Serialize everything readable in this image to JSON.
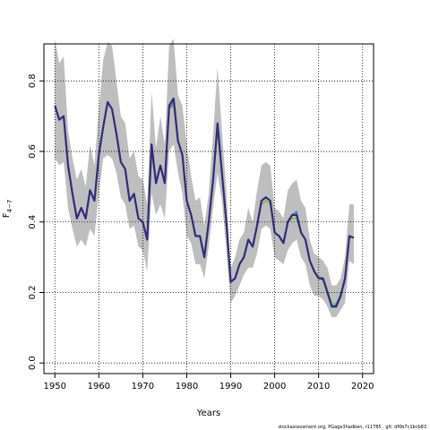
{
  "chart_data": {
    "type": "line",
    "xlabel": "Years",
    "ylabel_main": "F",
    "ylabel_sub": "4−7",
    "xlim": [
      1947.5,
      2022.5
    ],
    "ylim": [
      -0.03,
      0.905
    ],
    "xticks": [
      1950,
      1960,
      1970,
      1980,
      1990,
      2000,
      2010,
      2020
    ],
    "yticks": [
      0.0,
      0.2,
      0.4,
      0.6,
      0.8
    ],
    "ytick_labels": [
      "0.0",
      "0.2",
      "0.4",
      "0.6",
      "0.8"
    ],
    "grid": true,
    "band_color": "#bebebe",
    "band": {
      "years": [
        1950,
        1951,
        1952,
        1953,
        1954,
        1955,
        1956,
        1957,
        1958,
        1959,
        1960,
        1961,
        1962,
        1963,
        1964,
        1965,
        1966,
        1967,
        1968,
        1969,
        1970,
        1971,
        1972,
        1973,
        1974,
        1975,
        1976,
        1977,
        1978,
        1979,
        1980,
        1981,
        1982,
        1983,
        1984,
        1985,
        1986,
        1987,
        1988,
        1989,
        1990,
        1991,
        1992,
        1993,
        1994,
        1995,
        1996,
        1997,
        1998,
        1999,
        2000,
        2001,
        2002,
        2003,
        2004,
        2005,
        2006,
        2007,
        2008,
        2009,
        2010,
        2011,
        2012,
        2013,
        2014,
        2015,
        2016,
        2017,
        2018
      ],
      "lower": [
        0.58,
        0.56,
        0.57,
        0.44,
        0.38,
        0.33,
        0.35,
        0.33,
        0.38,
        0.36,
        0.48,
        0.58,
        0.59,
        0.58,
        0.54,
        0.47,
        0.45,
        0.38,
        0.39,
        0.33,
        0.32,
        0.26,
        0.48,
        0.42,
        0.45,
        0.41,
        0.6,
        0.62,
        0.54,
        0.48,
        0.36,
        0.34,
        0.28,
        0.28,
        0.24,
        0.33,
        0.44,
        0.54,
        0.46,
        0.32,
        0.17,
        0.19,
        0.22,
        0.25,
        0.27,
        0.27,
        0.31,
        0.38,
        0.39,
        0.38,
        0.3,
        0.29,
        0.28,
        0.32,
        0.34,
        0.35,
        0.3,
        0.28,
        0.22,
        0.19,
        0.19,
        0.18,
        0.16,
        0.13,
        0.13,
        0.15,
        0.17,
        0.29,
        0.28
      ],
      "upper": [
        0.92,
        0.85,
        0.87,
        0.66,
        0.58,
        0.52,
        0.55,
        0.5,
        0.62,
        0.56,
        0.72,
        0.86,
        0.91,
        0.9,
        0.8,
        0.7,
        0.68,
        0.58,
        0.6,
        0.53,
        0.52,
        0.45,
        0.77,
        0.61,
        0.7,
        0.62,
        0.9,
        0.92,
        0.76,
        0.73,
        0.62,
        0.53,
        0.46,
        0.47,
        0.39,
        0.48,
        0.65,
        0.84,
        0.66,
        0.49,
        0.27,
        0.3,
        0.35,
        0.37,
        0.44,
        0.4,
        0.49,
        0.56,
        0.57,
        0.56,
        0.44,
        0.43,
        0.41,
        0.49,
        0.51,
        0.52,
        0.46,
        0.44,
        0.35,
        0.31,
        0.3,
        0.29,
        0.27,
        0.22,
        0.22,
        0.24,
        0.3,
        0.45,
        0.45
      ]
    },
    "series": [
      {
        "color": "#2f2c7c",
        "width": 2.2,
        "x": [
          1950,
          1951,
          1952,
          1953,
          1954,
          1955,
          1956,
          1957,
          1958,
          1959,
          1960,
          1961,
          1962,
          1963,
          1964,
          1965,
          1966,
          1967,
          1968,
          1969,
          1970,
          1971,
          1972,
          1973,
          1974,
          1975,
          1976,
          1977,
          1978,
          1979,
          1980,
          1981,
          1982,
          1983,
          1984,
          1985,
          1986,
          1987,
          1988,
          1989,
          1990,
          1991,
          1992,
          1993,
          1994,
          1995,
          1996,
          1997,
          1998,
          1999,
          2000,
          2001,
          2002,
          2003,
          2004,
          2005,
          2006,
          2007,
          2008,
          2009,
          2010,
          2011,
          2012,
          2013,
          2014,
          2015,
          2016,
          2017,
          2018
        ],
        "y": [
          0.73,
          0.69,
          0.7,
          0.56,
          0.48,
          0.41,
          0.44,
          0.41,
          0.49,
          0.46,
          0.59,
          0.67,
          0.74,
          0.72,
          0.65,
          0.57,
          0.55,
          0.46,
          0.48,
          0.41,
          0.4,
          0.35,
          0.62,
          0.51,
          0.56,
          0.51,
          0.73,
          0.75,
          0.63,
          0.59,
          0.46,
          0.42,
          0.36,
          0.36,
          0.3,
          0.4,
          0.52,
          0.68,
          0.54,
          0.4,
          0.23,
          0.24,
          0.28,
          0.3,
          0.35,
          0.33,
          0.39,
          0.46,
          0.47,
          0.46,
          0.37,
          0.36,
          0.34,
          0.4,
          0.42,
          0.42,
          0.37,
          0.35,
          0.29,
          0.26,
          0.24,
          0.24,
          0.2,
          0.16,
          0.16,
          0.19,
          0.24,
          0.36,
          0.355
        ]
      },
      {
        "color": "#2a7fbf",
        "width": 1.3,
        "x": [
          1950,
          1951,
          1952,
          1953,
          1954,
          1955,
          1956,
          1957,
          1958,
          1959,
          1960,
          1961,
          1962,
          1963,
          1964,
          1965,
          1966,
          1967,
          1968,
          1969,
          1970,
          1971,
          1972,
          1973,
          1974,
          1975,
          1976,
          1977,
          1978,
          1979,
          1980,
          1981,
          1982,
          1983,
          1984,
          1985,
          1986,
          1987,
          1988,
          1989,
          1990,
          1991,
          1992,
          1993,
          1994,
          1995,
          1996,
          1997,
          1998,
          1999,
          2000,
          2001,
          2002,
          2003,
          2004,
          2005,
          2006,
          2007,
          2008,
          2009,
          2010,
          2011,
          2012,
          2013,
          2014,
          2015,
          2016
        ],
        "y": [
          0.73,
          0.69,
          0.7,
          0.56,
          0.48,
          0.41,
          0.44,
          0.41,
          0.49,
          0.46,
          0.59,
          0.67,
          0.74,
          0.72,
          0.65,
          0.57,
          0.55,
          0.46,
          0.48,
          0.41,
          0.4,
          0.35,
          0.61,
          0.51,
          0.56,
          0.51,
          0.72,
          0.74,
          0.63,
          0.59,
          0.46,
          0.42,
          0.36,
          0.36,
          0.3,
          0.4,
          0.52,
          0.67,
          0.54,
          0.4,
          0.23,
          0.24,
          0.28,
          0.3,
          0.35,
          0.33,
          0.39,
          0.46,
          0.47,
          0.46,
          0.37,
          0.36,
          0.34,
          0.4,
          0.42,
          0.43,
          0.37,
          0.35,
          0.29,
          0.26,
          0.24,
          0.235,
          0.2,
          0.16,
          0.165,
          0.195,
          0.23
        ]
      },
      {
        "color": "#3fbfb0",
        "width": 1.3,
        "x": [
          1950,
          1951,
          1952,
          1953,
          1954,
          1955,
          1956,
          1957,
          1958,
          1959,
          1960,
          1961,
          1962,
          1963,
          1964,
          1965,
          1966,
          1967,
          1968,
          1969,
          1970,
          1971,
          1972,
          1973,
          1974,
          1975,
          1976,
          1977,
          1978,
          1979,
          1980,
          1981,
          1982,
          1983,
          1984,
          1985,
          1986,
          1987,
          1988,
          1989,
          1990,
          1991,
          1992,
          1993,
          1994,
          1995,
          1996,
          1997,
          1998,
          1999,
          2000,
          2001,
          2002,
          2003,
          2004,
          2005,
          2006,
          2007,
          2008,
          2009,
          2010,
          2011,
          2012,
          2013,
          2014,
          2015
        ],
        "y": [
          0.73,
          0.69,
          0.7,
          0.56,
          0.48,
          0.41,
          0.44,
          0.41,
          0.49,
          0.46,
          0.59,
          0.67,
          0.74,
          0.72,
          0.65,
          0.57,
          0.55,
          0.46,
          0.48,
          0.41,
          0.4,
          0.35,
          0.61,
          0.51,
          0.56,
          0.51,
          0.72,
          0.74,
          0.63,
          0.59,
          0.46,
          0.42,
          0.36,
          0.36,
          0.3,
          0.4,
          0.52,
          0.67,
          0.54,
          0.4,
          0.23,
          0.24,
          0.28,
          0.3,
          0.35,
          0.33,
          0.39,
          0.46,
          0.47,
          0.46,
          0.37,
          0.36,
          0.34,
          0.4,
          0.42,
          0.42,
          0.37,
          0.35,
          0.29,
          0.26,
          0.245,
          0.235,
          0.2,
          0.165,
          0.17,
          0.19
        ]
      },
      {
        "color": "#7fbf3f",
        "width": 1.6,
        "x": [
          1950,
          1951,
          1952,
          1953,
          1954,
          1955,
          1956,
          1957,
          1958,
          1959,
          1960,
          1961,
          1962,
          1963,
          1964,
          1965,
          1966,
          1967,
          1968,
          1969,
          1970,
          1971,
          1972,
          1973,
          1974,
          1975,
          1976,
          1977,
          1978,
          1979,
          1980,
          1981,
          1982,
          1983,
          1984,
          1985,
          1986,
          1987,
          1988,
          1989,
          1990,
          1991,
          1992,
          1993,
          1994,
          1995,
          1996,
          1997,
          1998,
          1999,
          2000,
          2001,
          2002,
          2003,
          2004,
          2005,
          2006,
          2007,
          2008,
          2009,
          2010,
          2011,
          2012,
          2013
        ],
        "y": [
          0.73,
          0.69,
          0.7,
          0.56,
          0.48,
          0.41,
          0.44,
          0.41,
          0.49,
          0.46,
          0.59,
          0.67,
          0.74,
          0.72,
          0.65,
          0.57,
          0.55,
          0.46,
          0.48,
          0.41,
          0.4,
          0.35,
          0.6,
          0.51,
          0.56,
          0.51,
          0.72,
          0.74,
          0.63,
          0.59,
          0.46,
          0.42,
          0.36,
          0.36,
          0.3,
          0.4,
          0.52,
          0.66,
          0.54,
          0.4,
          0.23,
          0.24,
          0.28,
          0.3,
          0.35,
          0.33,
          0.39,
          0.45,
          0.46,
          0.45,
          0.37,
          0.36,
          0.34,
          0.4,
          0.41,
          0.41,
          0.37,
          0.35,
          0.29,
          0.26,
          0.245,
          0.24,
          0.205,
          0.17
        ]
      },
      {
        "color": "#b5a82a",
        "width": 1.4,
        "x": [
          1950,
          1951,
          1952,
          1953,
          1954,
          1955,
          1956,
          1957,
          1958,
          1959,
          1960,
          1961,
          1962,
          1963,
          1964,
          1965,
          1966,
          1967,
          1968,
          1969,
          1970,
          1971,
          1972,
          1973,
          1974,
          1975,
          1976,
          1977,
          1978,
          1979,
          1980,
          1981,
          1982,
          1983,
          1984,
          1985,
          1986,
          1987,
          1988,
          1989,
          1990,
          1991,
          1992,
          1993,
          1994,
          1995,
          1996,
          1997,
          1998,
          1999,
          2000,
          2001,
          2002,
          2003,
          2004,
          2005,
          2006,
          2007,
          2008,
          2009,
          2010,
          2011,
          2012
        ],
        "y": [
          0.73,
          0.69,
          0.7,
          0.56,
          0.48,
          0.41,
          0.44,
          0.41,
          0.49,
          0.46,
          0.59,
          0.67,
          0.74,
          0.72,
          0.65,
          0.57,
          0.55,
          0.46,
          0.48,
          0.41,
          0.4,
          0.35,
          0.6,
          0.51,
          0.56,
          0.51,
          0.72,
          0.73,
          0.63,
          0.59,
          0.46,
          0.42,
          0.36,
          0.36,
          0.3,
          0.4,
          0.52,
          0.66,
          0.54,
          0.4,
          0.23,
          0.24,
          0.28,
          0.3,
          0.35,
          0.33,
          0.39,
          0.45,
          0.46,
          0.45,
          0.37,
          0.36,
          0.34,
          0.4,
          0.41,
          0.41,
          0.37,
          0.35,
          0.29,
          0.26,
          0.245,
          0.24,
          0.21
        ]
      }
    ]
  },
  "footer_text": "stockassessment.org, PGage3hadben, r11785 , git: df0b7c1bcb83"
}
